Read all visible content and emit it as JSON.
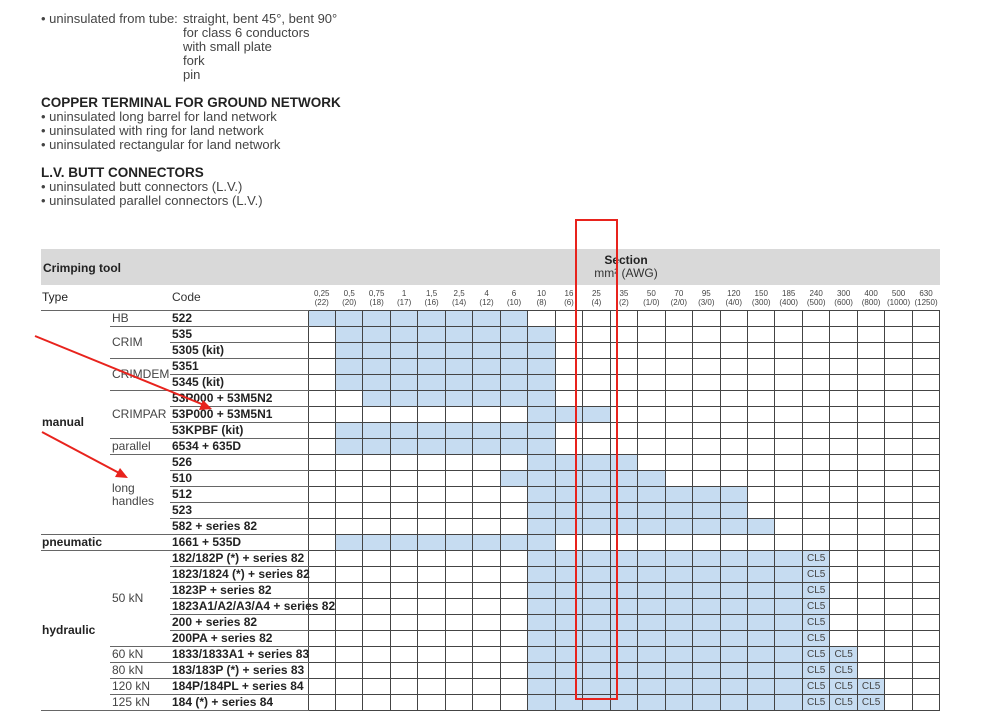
{
  "intro": {
    "line1_label": "• uninsulated from tube:",
    "line1_items": [
      "straight, bent 45°, bent 90°",
      "for class 6 conductors",
      "with small plate",
      "fork",
      "pin"
    ]
  },
  "sections": [
    {
      "title": "COPPER TERMINAL FOR GROUND NETWORK",
      "items": [
        "• uninsulated long barrel for land network",
        "• uninsulated with ring for land network",
        "• uninsulated rectangular for land network"
      ]
    },
    {
      "title": "L.V. BUTT CONNECTORS",
      "items": [
        "• uninsulated butt connectors (L.V.)",
        "• uninsulated parallel connectors (L.V.)"
      ]
    }
  ],
  "table": {
    "title": "Crimping tool",
    "section_label": "Section",
    "unit_label": "mm² (AWG)",
    "type_header": "Type",
    "code_header": "Code",
    "fill_color": "#c6dcf1",
    "columns": [
      {
        "mm2": "0,25",
        "awg": "(22)"
      },
      {
        "mm2": "0,5",
        "awg": "(20)"
      },
      {
        "mm2": "0,75",
        "awg": "(18)"
      },
      {
        "mm2": "1",
        "awg": "(17)"
      },
      {
        "mm2": "1,5",
        "awg": "(16)"
      },
      {
        "mm2": "2,5",
        "awg": "(14)"
      },
      {
        "mm2": "4",
        "awg": "(12)"
      },
      {
        "mm2": "6",
        "awg": "(10)"
      },
      {
        "mm2": "10",
        "awg": "(8)"
      },
      {
        "mm2": "16",
        "awg": "(6)"
      },
      {
        "mm2": "25",
        "awg": "(4)"
      },
      {
        "mm2": "35",
        "awg": "(2)"
      },
      {
        "mm2": "50",
        "awg": "(1/0)"
      },
      {
        "mm2": "70",
        "awg": "(2/0)"
      },
      {
        "mm2": "95",
        "awg": "(3/0)"
      },
      {
        "mm2": "120",
        "awg": "(4/0)"
      },
      {
        "mm2": "150",
        "awg": "(300)"
      },
      {
        "mm2": "185",
        "awg": "(400)"
      },
      {
        "mm2": "240",
        "awg": "(500)"
      },
      {
        "mm2": "300",
        "awg": "(600)"
      },
      {
        "mm2": "400",
        "awg": "(800)"
      },
      {
        "mm2": "500",
        "awg": "(1000)"
      },
      {
        "mm2": "630",
        "awg": "(1250)"
      }
    ],
    "types": [
      {
        "type": "manual",
        "subs": [
          {
            "name": "HB",
            "rows": [
              {
                "code": "522",
                "range": [
                  "0,25",
                  "6"
                ]
              }
            ]
          },
          {
            "name": "CRIM",
            "rows": [
              {
                "code": "535",
                "range": [
                  "0,5",
                  "10"
                ]
              },
              {
                "code": "5305 (kit)",
                "range": [
                  "0,5",
                  "10"
                ]
              }
            ]
          },
          {
            "name": "CRIMDEM",
            "rows": [
              {
                "code": "5351",
                "range": [
                  "0,5",
                  "10"
                ]
              },
              {
                "code": "5345 (kit)",
                "range": [
                  "0,5",
                  "10"
                ]
              }
            ]
          },
          {
            "name": "CRIMPAR",
            "rows": [
              {
                "code": "53P000 + 53M5N2",
                "range": [
                  "0,75",
                  "10"
                ]
              },
              {
                "code": "53P000 + 53M5N1",
                "range": [
                  "10",
                  "25"
                ]
              },
              {
                "code": "53KPBF (kit)",
                "range": [
                  "0,5",
                  "10"
                ]
              }
            ]
          },
          {
            "name": "parallel",
            "rows": [
              {
                "code": "6534 + 635D",
                "range": [
                  "0,5",
                  "10"
                ]
              }
            ]
          },
          {
            "name": "long handles",
            "rows": [
              {
                "code": "526",
                "range": [
                  "10",
                  "35"
                ]
              },
              {
                "code": "510",
                "range": [
                  "6",
                  "50"
                ]
              },
              {
                "code": "512",
                "range": [
                  "10",
                  "120"
                ]
              },
              {
                "code": "523",
                "range": [
                  "10",
                  "120"
                ]
              },
              {
                "code": "582 + series 82",
                "range": [
                  "10",
                  "150"
                ]
              }
            ]
          }
        ]
      },
      {
        "type": "pneumatic",
        "subs": [
          {
            "name": "",
            "rows": [
              {
                "code": "1661 + 535D",
                "range": [
                  "0,5",
                  "10"
                ]
              }
            ]
          }
        ]
      },
      {
        "type": "hydraulic",
        "subs": [
          {
            "name": "50 kN",
            "rows": [
              {
                "code": "182/182P (*) + series 82",
                "range": [
                  "10",
                  "185"
                ],
                "cl5": [
                  "240"
                ]
              },
              {
                "code": "1823/1824 (*) + series 82",
                "range": [
                  "10",
                  "185"
                ],
                "cl5": [
                  "240"
                ]
              },
              {
                "code": "1823P + series 82",
                "range": [
                  "10",
                  "185"
                ],
                "cl5": [
                  "240"
                ]
              },
              {
                "code": "1823A1/A2/A3/A4 + series 82",
                "range": [
                  "10",
                  "185"
                ],
                "cl5": [
                  "240"
                ]
              },
              {
                "code": "200 + series 82",
                "range": [
                  "10",
                  "185"
                ],
                "cl5": [
                  "240"
                ]
              },
              {
                "code": "200PA + series 82",
                "range": [
                  "10",
                  "185"
                ],
                "cl5": [
                  "240"
                ]
              }
            ]
          },
          {
            "name": "60 kN",
            "rows": [
              {
                "code": "1833/1833A1 + series 83",
                "range": [
                  "10",
                  "185"
                ],
                "cl5": [
                  "240",
                  "300"
                ]
              }
            ]
          },
          {
            "name": "80 kN",
            "rows": [
              {
                "code": "183/183P (*) + series 83",
                "range": [
                  "10",
                  "185"
                ],
                "cl5": [
                  "240",
                  "300"
                ]
              }
            ]
          },
          {
            "name": "120 kN",
            "rows": [
              {
                "code": "184P/184PL + series 84",
                "range": [
                  "10",
                  "185"
                ],
                "cl5": [
                  "240",
                  "300",
                  "400"
                ]
              }
            ]
          },
          {
            "name": "125 kN",
            "rows": [
              {
                "code": "184 (*) + series 84",
                "range": [
                  "10",
                  "185"
                ],
                "cl5": [
                  "240",
                  "300",
                  "400"
                ]
              }
            ]
          }
        ]
      }
    ],
    "cl5_label": "CL5"
  },
  "annotations": {
    "color": "#e8231d"
  }
}
